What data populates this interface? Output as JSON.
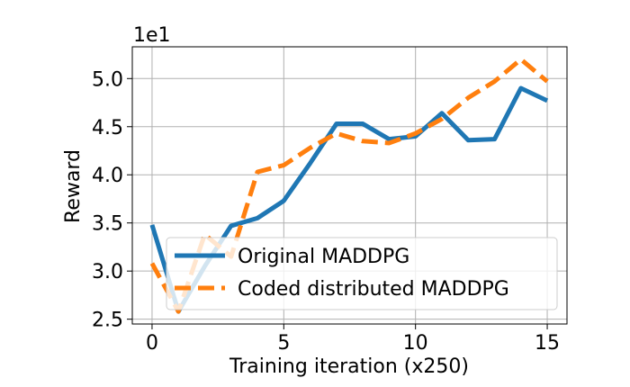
{
  "chart_data": {
    "type": "line",
    "title": "",
    "xlabel": "Training iteration (x250)",
    "ylabel": "Reward",
    "scale_label": "1e1",
    "x": [
      0,
      1,
      2,
      3,
      4,
      5,
      6,
      7,
      8,
      9,
      10,
      11,
      12,
      13,
      14,
      15
    ],
    "xlim": [
      -0.75,
      15.75
    ],
    "ylim": [
      2.45,
      5.33
    ],
    "xticks": [
      0,
      5,
      10,
      15
    ],
    "xtick_labels": [
      "0",
      "5",
      "10",
      "15"
    ],
    "yticks": [
      2.5,
      3.0,
      3.5,
      4.0,
      4.5,
      5.0
    ],
    "ytick_labels": [
      "2.5",
      "3.0",
      "3.5",
      "4.0",
      "4.5",
      "5.0"
    ],
    "grid": true,
    "legend_position": "lower-right",
    "series": [
      {
        "name": "Original MADDPG",
        "color": "#1f77b4",
        "dash": "solid",
        "values": [
          3.48,
          2.58,
          3.05,
          3.47,
          3.55,
          3.73,
          4.12,
          4.53,
          4.53,
          4.37,
          4.4,
          4.64,
          4.36,
          4.37,
          4.9,
          4.77
        ]
      },
      {
        "name": "Coded distributed MADDPG",
        "color": "#ff7f0e",
        "dash": "dashed",
        "values": [
          3.08,
          2.58,
          3.38,
          3.15,
          4.03,
          4.1,
          4.28,
          4.43,
          4.35,
          4.33,
          4.43,
          4.58,
          4.8,
          4.97,
          5.2,
          4.97
        ]
      }
    ]
  }
}
